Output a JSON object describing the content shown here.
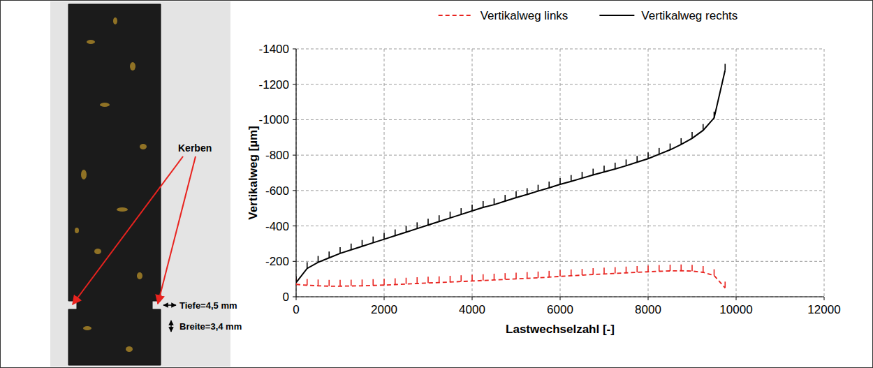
{
  "chart_data": {
    "type": "line",
    "xlabel": "Lastwechselzahl [-]",
    "ylabel": "Vertikalweg [µm]",
    "x": [
      0,
      250,
      500,
      750,
      1000,
      1250,
      1500,
      1750,
      2000,
      2250,
      2500,
      2750,
      3000,
      3250,
      3500,
      3750,
      4000,
      4250,
      4500,
      4750,
      5000,
      5250,
      5500,
      5750,
      6000,
      6250,
      6500,
      6750,
      7000,
      7250,
      7500,
      7750,
      8000,
      8250,
      8500,
      8750,
      9000,
      9250,
      9500,
      9750
    ],
    "series": [
      {
        "name": "Vertikalweg links",
        "color": "#e8231f",
        "line_style": "dashed",
        "marker": "tick",
        "values": [
          -70,
          -65,
          -62,
          -60,
          -60,
          -61,
          -62,
          -64,
          -66,
          -69,
          -72,
          -75,
          -78,
          -80,
          -83,
          -86,
          -89,
          -92,
          -95,
          -98,
          -101,
          -104,
          -107,
          -111,
          -115,
          -119,
          -122,
          -126,
          -129,
          -132,
          -135,
          -138,
          -141,
          -144,
          -146,
          -147,
          -145,
          -138,
          -120,
          -50
        ]
      },
      {
        "name": "Vertikalweg rechts",
        "color": "#000000",
        "line_style": "solid",
        "marker": "tick",
        "values": [
          -80,
          -160,
          -195,
          -220,
          -245,
          -265,
          -285,
          -305,
          -325,
          -345,
          -365,
          -385,
          -405,
          -425,
          -445,
          -465,
          -485,
          -505,
          -520,
          -540,
          -560,
          -578,
          -597,
          -615,
          -635,
          -652,
          -670,
          -688,
          -705,
          -722,
          -740,
          -760,
          -780,
          -805,
          -830,
          -860,
          -895,
          -940,
          -1010,
          -1280
        ]
      }
    ],
    "xlim": [
      0,
      12000
    ],
    "xticks": [
      0,
      2000,
      4000,
      6000,
      8000,
      10000,
      12000
    ],
    "ylim": [
      0,
      -1400
    ],
    "yticks": [
      0,
      -200,
      -400,
      -600,
      -800,
      -1000,
      -1200,
      -1400
    ],
    "grid": true,
    "legend": "top"
  },
  "photo": {
    "annotations": [
      "Kerben",
      "Tiefe=4,5 mm",
      "Breite=3,4 mm"
    ]
  }
}
